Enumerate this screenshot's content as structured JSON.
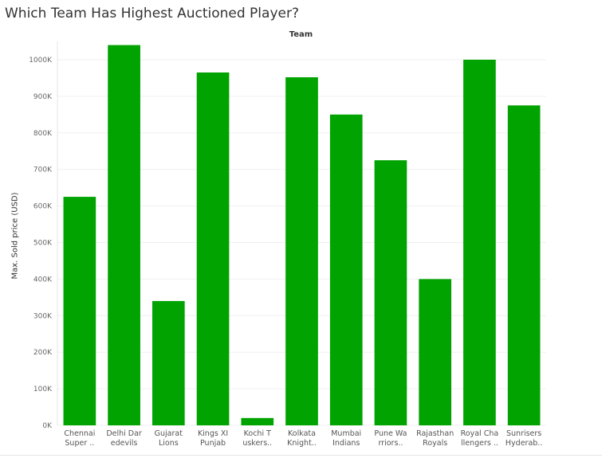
{
  "title": "Which Team Has Highest Auctioned Player?",
  "chart_data": {
    "type": "bar",
    "column_header": "Team",
    "ylabel": "Max. Sold price (USD)",
    "ylim": [
      0,
      1050000
    ],
    "yticks": [
      0,
      100000,
      200000,
      300000,
      400000,
      500000,
      600000,
      700000,
      800000,
      900000,
      1000000
    ],
    "ytick_labels": [
      "0K",
      "100K",
      "200K",
      "300K",
      "400K",
      "500K",
      "600K",
      "700K",
      "800K",
      "900K",
      "1000K"
    ],
    "grid": true,
    "bar_color": "#00A300",
    "categories": [
      [
        "Chennai",
        "Super .."
      ],
      [
        "Delhi Dar",
        "edevils"
      ],
      [
        "Gujarat",
        "Lions"
      ],
      [
        "Kings XI",
        "Punjab"
      ],
      [
        "Kochi T",
        "uskers.."
      ],
      [
        "Kolkata",
        "Knight.."
      ],
      [
        "Mumbai",
        "Indians"
      ],
      [
        "Pune Wa",
        "rriors.."
      ],
      [
        "Rajasthan",
        "Royals"
      ],
      [
        "Royal Cha",
        "llengers .."
      ],
      [
        "Sunrisers",
        "Hyderab.."
      ]
    ],
    "values": [
      625000,
      1040000,
      340000,
      965000,
      20000,
      952000,
      850000,
      725000,
      400000,
      1000000,
      875000
    ]
  }
}
